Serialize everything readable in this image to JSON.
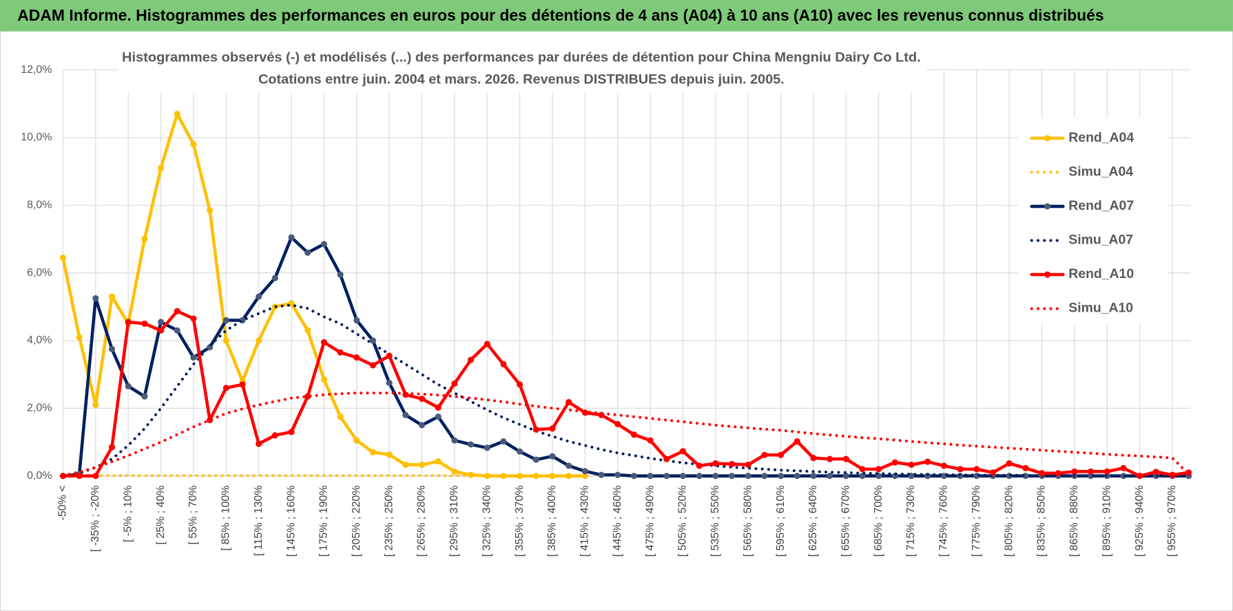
{
  "header": {
    "title": "ADAM Informe. Histogrammes des performances en euros pour des détentions de 4 ans (A04) à 10 ans (A10) avec les revenus connus distribués"
  },
  "chart_data": {
    "type": "line",
    "title": "Histogrammes observés (-) et modélisés (...) des performances par durées de détention pour China Mengniu Dairy Co Ltd.",
    "subtitle": "Cotations entre juin. 2004 et mars. 2026.  Revenus DISTRIBUES depuis juin. 2005.",
    "categories": [
      "-50% <",
      null,
      "[ -35% ; -20%",
      null,
      "[ -5% ; 10%",
      null,
      "[ 25% ; 40%",
      null,
      "[ 55% ; 70%",
      null,
      "[ 85% ; 100%",
      null,
      "[ 115% ; 130%",
      null,
      "[ 145% ; 160%",
      null,
      "[ 175% ; 190%",
      null,
      "[ 205% ; 220%",
      null,
      "[ 235% ; 250%",
      null,
      "[ 265% ; 280%",
      null,
      "[ 295% ; 310%",
      null,
      "[ 325% ; 340%",
      null,
      "[ 355% ; 370%",
      null,
      "[ 385% ; 400%",
      null,
      "[ 415% ; 430%",
      null,
      "[ 445% ; 460%",
      null,
      "[ 475% ; 490%",
      null,
      "[ 505% ; 520%",
      null,
      "[ 535% ; 550%",
      null,
      "[ 565% ; 580%",
      null,
      "[ 595% ; 610%",
      null,
      "[ 625% ; 640%",
      null,
      "[ 655% ; 670%",
      null,
      "[ 685% ; 700%",
      null,
      "[ 715% ; 730%",
      null,
      "[ 745% ; 760%",
      null,
      "[ 775% ; 790%",
      null,
      "[ 805% ; 820%",
      null,
      "[ 835% ; 850%",
      null,
      "[ 865% ; 880%",
      null,
      "[ 895% ; 910%",
      null,
      "[ 925% ; 940%",
      null,
      "[ 955% ; 970%",
      null
    ],
    "series": [
      {
        "name": "Rend_A04",
        "color": "#ffc000",
        "line_style": "solid",
        "markers": true,
        "values": [
          6.45,
          4.1,
          2.1,
          5.3,
          4.5,
          7.0,
          9.1,
          10.7,
          9.8,
          7.85,
          4.0,
          2.8,
          4.0,
          5.0,
          5.1,
          4.3,
          2.85,
          1.75,
          1.05,
          0.7,
          0.63,
          0.33,
          0.33,
          0.43,
          0.13,
          0.03,
          0,
          0,
          0,
          0,
          0,
          0,
          0,
          null,
          null,
          null,
          null,
          null,
          null,
          null,
          null,
          null,
          null,
          null,
          null,
          null,
          null,
          null,
          null,
          null,
          null,
          null,
          null,
          null,
          null,
          null,
          null,
          null,
          null,
          null,
          null,
          null,
          null,
          null,
          null,
          null,
          null,
          null,
          null,
          null
        ]
      },
      {
        "name": "Simu_A04",
        "color": "#ffc000",
        "line_style": "dotted",
        "markers": false,
        "values": [
          0,
          0.01,
          0.01,
          0.01,
          0.01,
          0.01,
          0.01,
          0.01,
          0.01,
          0.01,
          0.01,
          0.01,
          0.01,
          0.01,
          0.01,
          0.01,
          0.01,
          0.01,
          0.01,
          0.01,
          0.01,
          0.01,
          0.01,
          0.01,
          0.01,
          0.01,
          0.01,
          0.01,
          0.01,
          0.01,
          0.01,
          0.01,
          0.01,
          null,
          null,
          null,
          null,
          null,
          null,
          null,
          null,
          null,
          null,
          null,
          null,
          null,
          null,
          null,
          null,
          null,
          null,
          null,
          null,
          null,
          null,
          null,
          null,
          null,
          null,
          null,
          null,
          null,
          null,
          null,
          null,
          null,
          null,
          null,
          null,
          null
        ]
      },
      {
        "name": "Rend_A07",
        "color": "#002060",
        "line_style": "solid",
        "markers": true,
        "values": [
          0,
          0.05,
          5.25,
          3.75,
          2.65,
          2.35,
          4.55,
          4.3,
          3.5,
          3.8,
          4.6,
          4.6,
          5.3,
          5.85,
          7.05,
          6.6,
          6.85,
          5.95,
          4.6,
          4.0,
          2.75,
          1.8,
          1.5,
          1.75,
          1.05,
          0.93,
          0.83,
          1.02,
          0.72,
          0.48,
          0.58,
          0.3,
          0.14,
          0.03,
          0.03,
          0,
          0,
          0,
          0,
          0,
          0,
          0,
          0,
          0,
          0,
          0,
          0,
          0,
          0,
          0,
          0,
          0,
          0,
          0,
          0,
          0,
          0,
          0,
          0,
          0,
          0,
          0,
          0,
          0,
          0,
          0,
          0,
          0,
          0,
          0
        ]
      },
      {
        "name": "Simu_A07",
        "color": "#002060",
        "line_style": "dotted",
        "markers": false,
        "values": [
          0,
          0.08,
          0.25,
          0.5,
          0.9,
          1.4,
          2.0,
          2.65,
          3.3,
          3.85,
          4.3,
          4.6,
          4.8,
          5.0,
          5.05,
          4.95,
          4.7,
          4.5,
          4.2,
          3.9,
          3.6,
          3.3,
          3.0,
          2.7,
          2.45,
          2.2,
          1.95,
          1.72,
          1.52,
          1.33,
          1.17,
          1.02,
          0.9,
          0.78,
          0.68,
          0.6,
          0.52,
          0.45,
          0.39,
          0.34,
          0.3,
          0.26,
          0.23,
          0.2,
          0.17,
          0.15,
          0.13,
          0.11,
          0.1,
          0.08,
          0.07,
          0.06,
          0.05,
          0.04,
          0.04,
          0.03,
          0.03,
          0.02,
          0.02,
          0.02,
          0.01,
          0.01,
          0.01,
          0.01,
          0.01,
          0,
          0,
          0,
          0,
          0
        ]
      },
      {
        "name": "Rend_A10",
        "color": "#ff0000",
        "line_style": "solid",
        "markers": true,
        "values": [
          0,
          0,
          0,
          0.85,
          4.55,
          4.5,
          4.3,
          4.87,
          4.65,
          1.65,
          2.6,
          2.7,
          0.95,
          1.2,
          1.3,
          2.35,
          3.95,
          3.65,
          3.5,
          3.27,
          3.55,
          2.4,
          2.28,
          2.02,
          2.73,
          3.43,
          3.9,
          3.3,
          2.7,
          1.37,
          1.4,
          2.18,
          1.87,
          1.8,
          1.53,
          1.22,
          1.05,
          0.5,
          0.73,
          0.3,
          0.37,
          0.35,
          0.33,
          0.62,
          0.62,
          1.02,
          0.53,
          0.5,
          0.5,
          0.2,
          0.2,
          0.4,
          0.33,
          0.42,
          0.3,
          0.2,
          0.2,
          0.1,
          0.37,
          0.23,
          0.08,
          0.08,
          0.13,
          0.13,
          0.13,
          0.23,
          0,
          0.12,
          0.03,
          0.1
        ]
      },
      {
        "name": "Simu_A10",
        "color": "#ff0000",
        "line_style": "dotted",
        "markers": false,
        "values": [
          0,
          0.12,
          0.25,
          0.42,
          0.6,
          0.8,
          1.0,
          1.22,
          1.45,
          1.65,
          1.85,
          1.98,
          2.1,
          2.2,
          2.3,
          2.35,
          2.4,
          2.43,
          2.45,
          2.45,
          2.45,
          2.44,
          2.42,
          2.39,
          2.35,
          2.3,
          2.25,
          2.19,
          2.12,
          2.06,
          2.0,
          1.95,
          1.9,
          1.85,
          1.8,
          1.75,
          1.7,
          1.65,
          1.6,
          1.55,
          1.5,
          1.46,
          1.42,
          1.38,
          1.35,
          1.3,
          1.25,
          1.21,
          1.17,
          1.13,
          1.1,
          1.06,
          1.02,
          0.98,
          0.95,
          0.91,
          0.88,
          0.85,
          0.82,
          0.79,
          0.76,
          0.73,
          0.7,
          0.67,
          0.64,
          0.61,
          0.59,
          0.56,
          0.53,
          0.05
        ]
      }
    ],
    "ylim": [
      0,
      12
    ],
    "yticks": [
      {
        "value": 0,
        "label": "0,0%"
      },
      {
        "value": 2,
        "label": "2,0%"
      },
      {
        "value": 4,
        "label": "4,0%"
      },
      {
        "value": 6,
        "label": "6,0%"
      },
      {
        "value": 8,
        "label": "8,0%"
      },
      {
        "value": 10,
        "label": "10,0%"
      },
      {
        "value": 12,
        "label": "12,0%"
      }
    ],
    "grid": true,
    "legend": "right"
  }
}
